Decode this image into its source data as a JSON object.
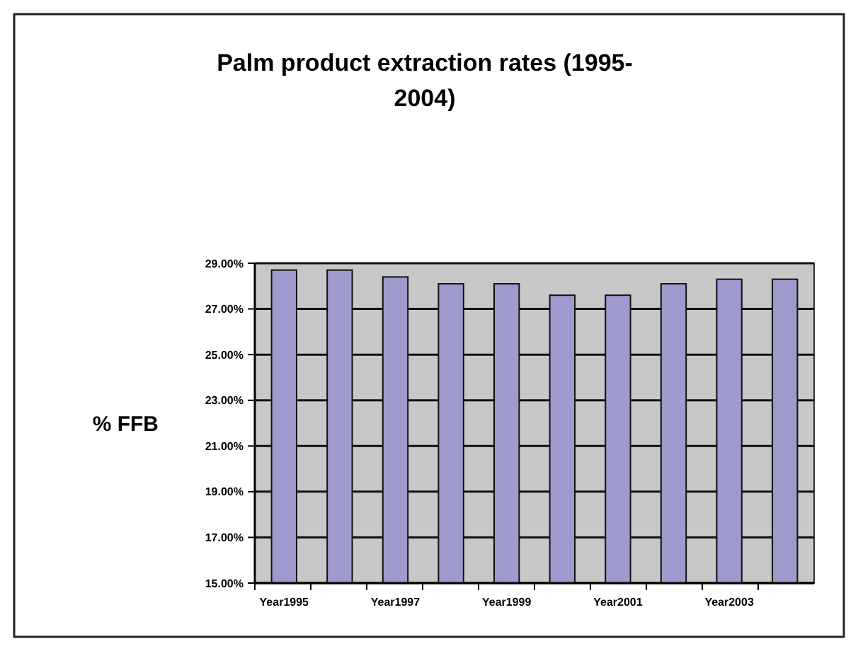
{
  "chart_data": {
    "type": "bar",
    "title": "Palm product extraction rates (1995-2004)",
    "ylabel": "% FFB",
    "categories": [
      "Year1995",
      null,
      "Year1997",
      null,
      "Year1999",
      null,
      "Year2001",
      null,
      "Year2003",
      null
    ],
    "values": [
      28.7,
      28.7,
      28.4,
      28.1,
      28.1,
      27.6,
      27.6,
      28.1,
      28.3,
      28.3
    ],
    "color": "#9e9acd",
    "ylim": [
      15,
      29
    ],
    "yticks": [
      {
        "value": 15,
        "label": "15.00%"
      },
      {
        "value": 17,
        "label": "17.00%"
      },
      {
        "value": 19,
        "label": "19.00%"
      },
      {
        "value": 21,
        "label": "21.00%"
      },
      {
        "value": 23,
        "label": "23.00%"
      },
      {
        "value": 25,
        "label": "25.00%"
      },
      {
        "value": 27,
        "label": "27.00%"
      },
      {
        "value": 29,
        "label": "29.00%"
      }
    ],
    "grid": "y"
  }
}
